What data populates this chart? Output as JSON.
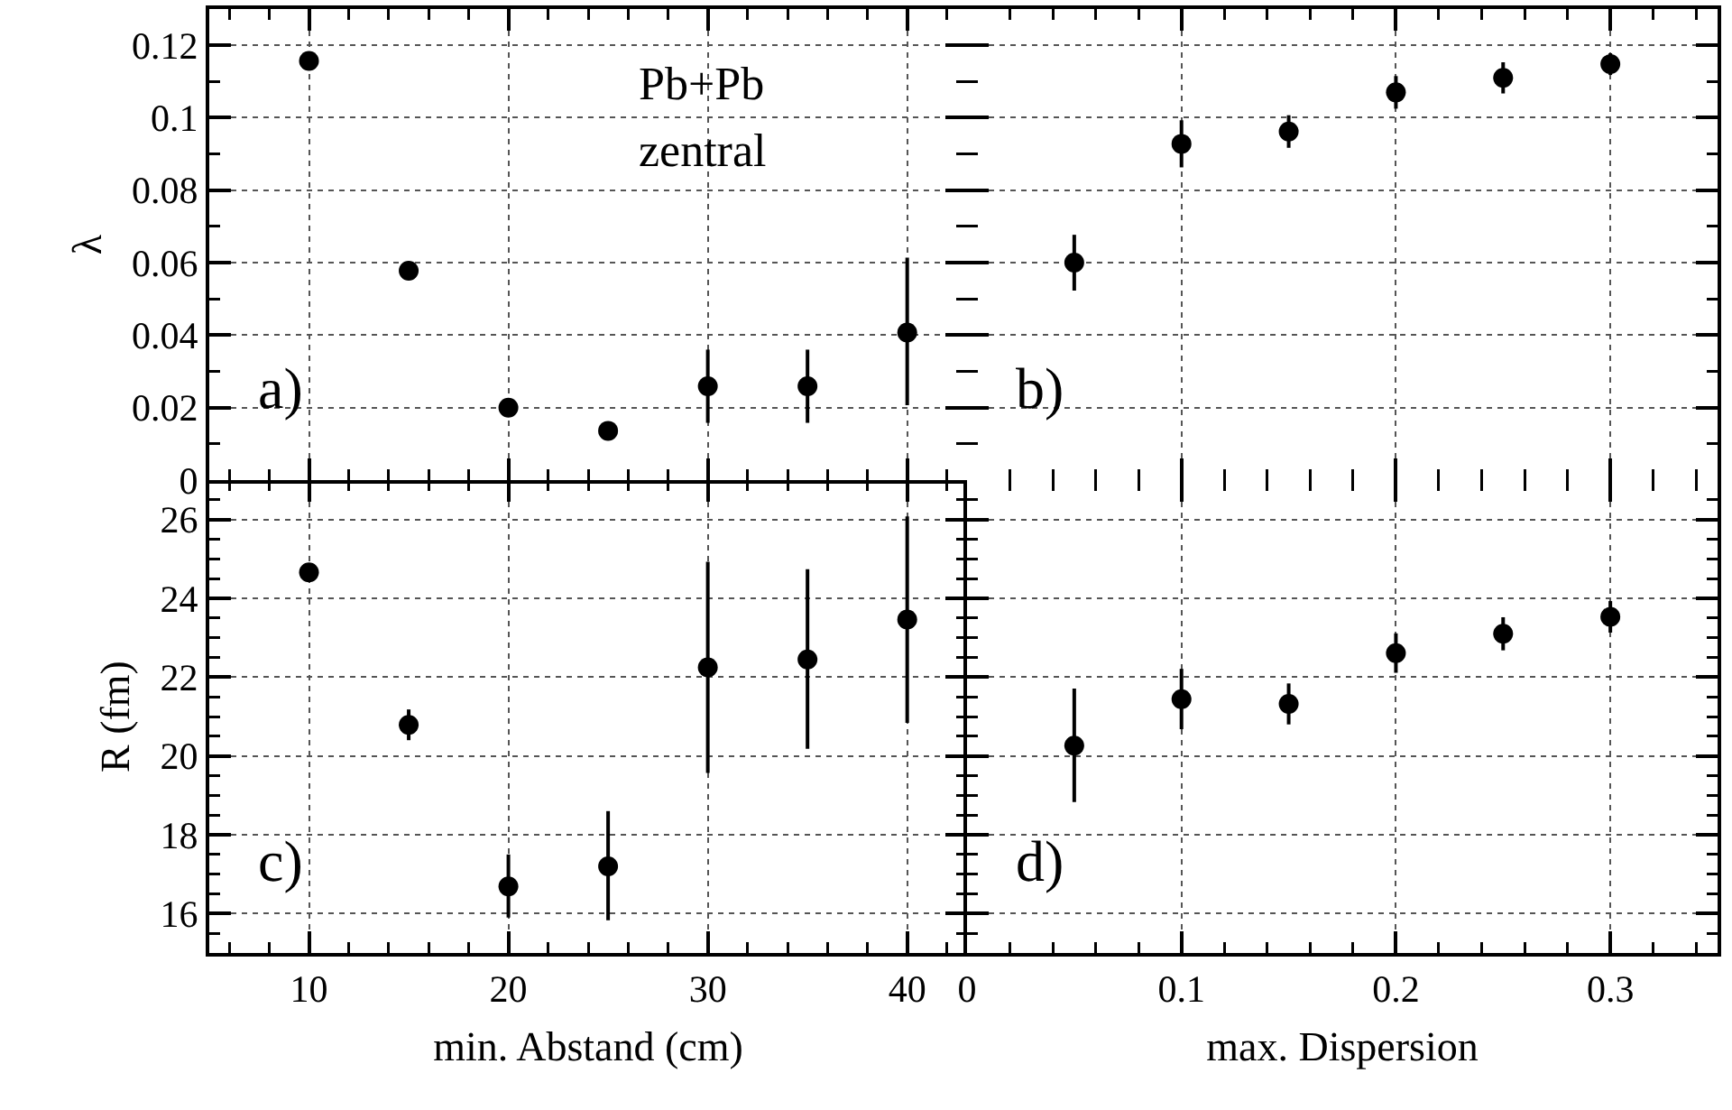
{
  "chart_data": [
    {
      "type": "scatter",
      "ylabel": "λ",
      "x": [
        10,
        15,
        20,
        25,
        30,
        35,
        40
      ],
      "color": "#000000",
      "marker": "circle",
      "values": [
        0.1157,
        0.0578,
        0.02,
        0.0136,
        0.0259,
        0.0259,
        0.0407
      ],
      "errors": [
        null,
        null,
        null,
        null,
        0.0101,
        0.0101,
        [
          0.0207,
          0.0614
        ]
      ],
      "xlim": [
        5,
        43
      ],
      "xticks": [
        10,
        20,
        30,
        40
      ],
      "ylim": [
        0,
        0.13
      ],
      "yticks": [
        0,
        0.02,
        0.04,
        0.06,
        0.08,
        0.1,
        0.12
      ],
      "grid": true,
      "tick_labels": "y",
      "annotations": [
        "a)",
        "Pb+Pb",
        "zentral"
      ]
    },
    {
      "type": "scatter",
      "x": [
        0.05,
        0.1,
        0.15,
        0.2,
        0.25,
        0.3
      ],
      "color": "#000000",
      "marker": "circle",
      "values": [
        0.06,
        0.0928,
        0.0962,
        0.107,
        0.111,
        0.1148
      ],
      "errors": [
        0.0077,
        [
          0.0863,
          0.0993
        ],
        0.0045,
        0.0045,
        0.0043,
        0.003
      ],
      "xlim": [
        0,
        0.35
      ],
      "xticks": [
        0,
        0.1,
        0.2,
        0.3
      ],
      "ylim": [
        0,
        0.13
      ],
      "yticks": [
        0,
        0.02,
        0.04,
        0.06,
        0.08,
        0.1,
        0.12
      ],
      "grid": true,
      "tick_labels": false,
      "annotations": [
        "b)"
      ]
    },
    {
      "type": "scatter",
      "ylabel": "R (fm)",
      "xlabel": "min. Abstand (cm)",
      "x": [
        10,
        15,
        20,
        25,
        30,
        35,
        40
      ],
      "color": "#000000",
      "marker": "circle",
      "values": [
        24.66,
        20.79,
        16.69,
        17.2,
        22.25,
        22.45,
        23.46
      ],
      "errors": [
        0.2,
        0.39,
        [
          15.9,
          17.5
        ],
        [
          15.83,
          18.6
        ],
        [
          19.57,
          24.93
        ],
        [
          20.18,
          24.74
        ],
        [
          20.84,
          26.08
        ]
      ],
      "xlim": [
        5,
        43
      ],
      "xticks": [
        10,
        20,
        30,
        40
      ],
      "ylim": [
        15,
        27
      ],
      "yticks": [
        16,
        18,
        20,
        22,
        24,
        26
      ],
      "grid": true,
      "annotations": [
        "c)"
      ]
    },
    {
      "type": "scatter",
      "xlabel": "max. Dispersion",
      "x": [
        0.05,
        0.1,
        0.15,
        0.2,
        0.25,
        0.3
      ],
      "color": "#000000",
      "marker": "circle",
      "values": [
        20.26,
        21.44,
        21.32,
        22.61,
        23.1,
        23.53
      ],
      "errors": [
        [
          18.83,
          21.71
        ],
        [
          20.68,
          22.21
        ],
        0.52,
        0.5,
        0.42,
        0.4
      ],
      "xlim": [
        0,
        0.35
      ],
      "xticks": [
        0,
        0.1,
        0.2,
        0.3
      ],
      "ylim": [
        15,
        27
      ],
      "yticks": [
        16,
        18,
        20,
        22,
        24,
        26
      ],
      "grid": true,
      "tick_labels": "x",
      "annotations": [
        "d)"
      ]
    }
  ]
}
